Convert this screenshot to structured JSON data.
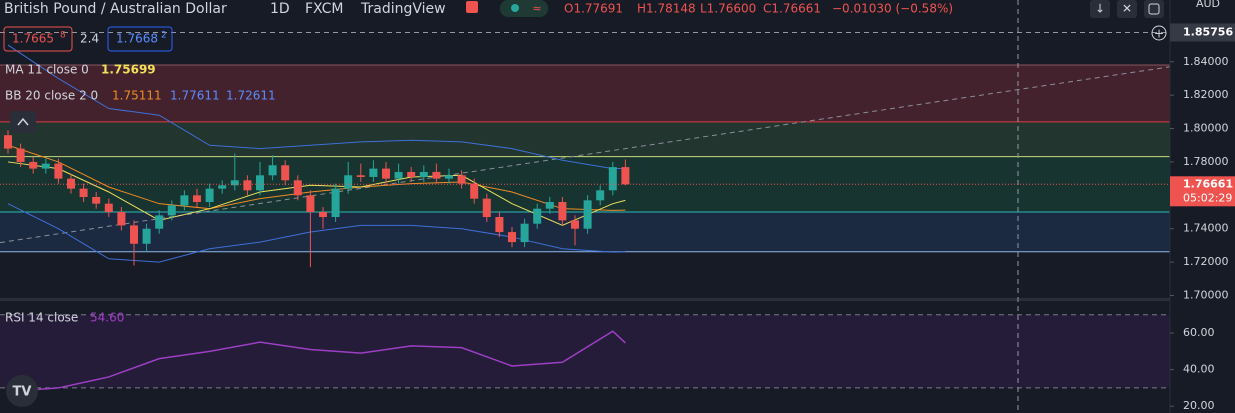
{
  "chart_data": {
    "type": "candlestick",
    "title": "British Pound / Australian Dollar",
    "interval": "1D",
    "source": "FXCM",
    "platform": "TradingView",
    "ohlc_header": {
      "open": "O1.77691",
      "high": "H1.78148",
      "low": "L1.76600",
      "close": "C1.76661",
      "change": "−0.01030 (−0.58%)"
    },
    "bid": {
      "main": "1.7665",
      "pip": "8"
    },
    "spread": "2.4",
    "ask": {
      "main": "1.7668",
      "pip": "2"
    },
    "currency": "AUD",
    "countdown": "05:02:29",
    "crosshair_price": 1.85756,
    "up_color": "#26a69a",
    "down_color": "#ef5350",
    "open": [
      1.796,
      1.788,
      1.78,
      1.776,
      1.779,
      1.77,
      1.764,
      1.759,
      1.755,
      1.75,
      1.742,
      1.731,
      1.74,
      1.748,
      1.754,
      1.76,
      1.756,
      1.764,
      1.766,
      1.769,
      1.763,
      1.772,
      1.778,
      1.769,
      1.76,
      1.75,
      1.747,
      1.764,
      1.772,
      1.771,
      1.776,
      1.77,
      1.774,
      1.771,
      1.774,
      1.77,
      1.772,
      1.767,
      1.758,
      1.747,
      1.738,
      1.732,
      1.743,
      1.752,
      1.756,
      1.745,
      1.74,
      1.757,
      1.763,
      1.77691
    ],
    "high": [
      1.799,
      1.791,
      1.783,
      1.782,
      1.782,
      1.773,
      1.767,
      1.762,
      1.758,
      1.753,
      1.745,
      1.743,
      1.751,
      1.757,
      1.763,
      1.764,
      1.767,
      1.769,
      1.785,
      1.772,
      1.78,
      1.784,
      1.781,
      1.772,
      1.763,
      1.753,
      1.767,
      1.78,
      1.779,
      1.781,
      1.78,
      1.779,
      1.777,
      1.778,
      1.779,
      1.776,
      1.775,
      1.77,
      1.761,
      1.75,
      1.741,
      1.746,
      1.755,
      1.759,
      1.759,
      1.748,
      1.76,
      1.766,
      1.78,
      1.78148
    ],
    "low": [
      1.785,
      1.777,
      1.773,
      1.773,
      1.767,
      1.761,
      1.756,
      1.752,
      1.747,
      1.739,
      1.718,
      1.726,
      1.737,
      1.745,
      1.751,
      1.753,
      1.753,
      1.761,
      1.763,
      1.76,
      1.76,
      1.769,
      1.766,
      1.757,
      1.717,
      1.74,
      1.744,
      1.761,
      1.768,
      1.768,
      1.767,
      1.767,
      1.768,
      1.768,
      1.767,
      1.767,
      1.764,
      1.755,
      1.744,
      1.735,
      1.729,
      1.729,
      1.74,
      1.749,
      1.742,
      1.73,
      1.737,
      1.754,
      1.76,
      1.766
    ],
    "close": [
      1.788,
      1.78,
      1.776,
      1.779,
      1.77,
      1.764,
      1.759,
      1.755,
      1.75,
      1.742,
      1.731,
      1.74,
      1.748,
      1.754,
      1.76,
      1.756,
      1.764,
      1.766,
      1.769,
      1.763,
      1.772,
      1.778,
      1.769,
      1.76,
      1.75,
      1.747,
      1.764,
      1.772,
      1.771,
      1.776,
      1.77,
      1.774,
      1.771,
      1.774,
      1.77,
      1.772,
      1.767,
      1.758,
      1.747,
      1.738,
      1.732,
      1.743,
      1.752,
      1.756,
      1.745,
      1.74,
      1.757,
      1.763,
      1.7769,
      1.76661
    ],
    "indicator_index": [
      0,
      4,
      8,
      12,
      16,
      20,
      24,
      28,
      32,
      36,
      40,
      44,
      48,
      49
    ],
    "ma": {
      "name": "MA 11 close 0",
      "color": "#f0e05a",
      "values": [
        1.78,
        1.776,
        1.762,
        1.745,
        1.752,
        1.762,
        1.766,
        1.765,
        1.771,
        1.772,
        1.755,
        1.742,
        1.755,
        1.75699
      ]
    },
    "bb": {
      "name": "BB 20 close 2 0",
      "basis_color": "#f08a24",
      "band_color": "#3f6fd8",
      "basis": [
        1.79,
        1.78,
        1.765,
        1.755,
        1.752,
        1.758,
        1.762,
        1.765,
        1.767,
        1.768,
        1.762,
        1.752,
        1.751,
        1.75111
      ],
      "upper": [
        1.85,
        1.83,
        1.812,
        1.808,
        1.79,
        1.788,
        1.79,
        1.792,
        1.793,
        1.792,
        1.788,
        1.781,
        1.776,
        1.77611
      ],
      "lower": [
        1.755,
        1.74,
        1.722,
        1.72,
        1.728,
        1.732,
        1.738,
        1.742,
        1.742,
        1.74,
        1.735,
        1.728,
        1.726,
        1.72611
      ]
    },
    "levels": [
      {
        "value": 1.8381,
        "color": "#8a5560"
      },
      {
        "value": 1.804,
        "color": "#e03a48"
      },
      {
        "value": 1.7832,
        "color": "#c8d878"
      },
      {
        "value": 1.75,
        "color": "#28b8b8"
      },
      {
        "value": 1.7262,
        "color": "#8fb8e8"
      }
    ],
    "zone_colors": [
      "#43222d",
      "#22352e",
      "#173431",
      "#1b2a40"
    ],
    "trendline": [
      1.7317,
      1.837
    ],
    "ylim": [
      1.6985,
      1.877
    ],
    "yticks": [
      {
        "value": 1.7,
        "label": "1.70000"
      },
      {
        "value": 1.72,
        "label": "1.72000"
      },
      {
        "value": 1.74,
        "label": "1.74000"
      },
      {
        "value": 1.76,
        "label": "1.76000"
      },
      {
        "value": 1.78,
        "label": "1.78000"
      },
      {
        "value": 1.8,
        "label": "1.80000"
      },
      {
        "value": 1.82,
        "label": "1.82000"
      },
      {
        "value": 1.84,
        "label": "1.84000"
      }
    ],
    "rsi": {
      "name": "RSI 14 close",
      "color": "#9c3fc4",
      "last_label": "54.60",
      "values": [
        28,
        30,
        36,
        46,
        50,
        55,
        51,
        49,
        53,
        52,
        42,
        44,
        61,
        54.6
      ],
      "bands": [
        70,
        30
      ],
      "ylim": [
        16.3,
        77.5
      ],
      "yticks": [
        {
          "value": 20,
          "label": "20.00"
        },
        {
          "value": 40,
          "label": "40.00"
        },
        {
          "value": 60,
          "label": "60.00"
        }
      ]
    }
  }
}
